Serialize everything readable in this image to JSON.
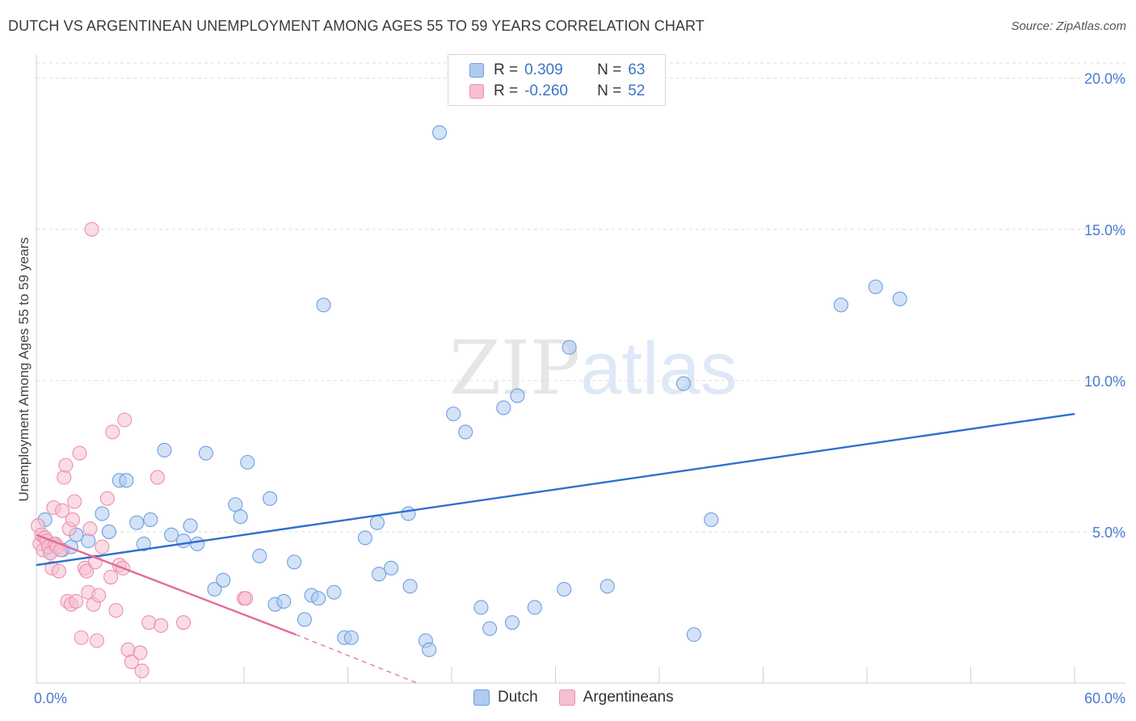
{
  "title": "DUTCH VS ARGENTINEAN UNEMPLOYMENT AMONG AGES 55 TO 59 YEARS CORRELATION CHART",
  "source": "Source: ZipAtlas.com",
  "watermark": {
    "zip": "ZIP",
    "atlas": "atlas"
  },
  "legend": {
    "rows": [
      {
        "r_label": "R =",
        "r_value": "0.309",
        "n_label": "N =",
        "n_value": "63"
      },
      {
        "r_label": "R =",
        "r_value": "-0.260",
        "n_label": "N =",
        "n_value": "52"
      }
    ]
  },
  "bottom_legend": [
    "Dutch",
    "Argentineans"
  ],
  "colors": {
    "dutch_fill": "#aecbf0",
    "dutch_stroke": "#6f9fe0",
    "dutch_line": "#2f6fd0",
    "arg_fill": "#f6bfd0",
    "arg_stroke": "#ec8fb0",
    "arg_line": "#e46b98",
    "grid": "#dddddd",
    "axis_text": "#4a7bd0"
  },
  "chart_data": {
    "type": "scatter",
    "title": "DUTCH VS ARGENTINEAN UNEMPLOYMENT AMONG AGES 55 TO 59 YEARS CORRELATION CHART",
    "xlabel": "",
    "ylabel": "Unemployment Among Ages 55 to 59 years",
    "xlim": [
      0,
      60
    ],
    "ylim": [
      0,
      20.5
    ],
    "x_ticks": [
      {
        "value": 0,
        "label": "0.0%"
      },
      {
        "value": 60,
        "label": "60.0%"
      }
    ],
    "y_ticks": [
      {
        "value": 5,
        "label": "5.0%"
      },
      {
        "value": 10,
        "label": "10.0%"
      },
      {
        "value": 15,
        "label": "15.0%"
      },
      {
        "value": 20,
        "label": "20.0%"
      }
    ],
    "grid": true,
    "legend_position": "top-center",
    "series": [
      {
        "name": "Dutch",
        "points": [
          [
            0.5,
            5.4
          ],
          [
            0.8,
            4.3
          ],
          [
            1.0,
            4.6
          ],
          [
            1.5,
            4.4
          ],
          [
            2.0,
            4.5
          ],
          [
            2.3,
            4.9
          ],
          [
            3.0,
            4.7
          ],
          [
            3.8,
            5.6
          ],
          [
            4.2,
            5.0
          ],
          [
            4.8,
            6.7
          ],
          [
            5.2,
            6.7
          ],
          [
            5.8,
            5.3
          ],
          [
            6.2,
            4.6
          ],
          [
            6.6,
            5.4
          ],
          [
            7.4,
            7.7
          ],
          [
            7.8,
            4.9
          ],
          [
            8.5,
            4.7
          ],
          [
            8.9,
            5.2
          ],
          [
            9.3,
            4.6
          ],
          [
            9.8,
            7.6
          ],
          [
            10.3,
            3.1
          ],
          [
            10.8,
            3.4
          ],
          [
            11.5,
            5.9
          ],
          [
            11.8,
            5.5
          ],
          [
            12.2,
            7.3
          ],
          [
            12.9,
            4.2
          ],
          [
            13.5,
            6.1
          ],
          [
            13.8,
            2.6
          ],
          [
            14.3,
            2.7
          ],
          [
            14.9,
            4.0
          ],
          [
            15.5,
            2.1
          ],
          [
            15.9,
            2.9
          ],
          [
            16.3,
            2.8
          ],
          [
            16.6,
            12.5
          ],
          [
            17.2,
            3.0
          ],
          [
            17.8,
            1.5
          ],
          [
            18.2,
            1.5
          ],
          [
            19.0,
            4.8
          ],
          [
            19.7,
            5.3
          ],
          [
            19.8,
            3.6
          ],
          [
            20.5,
            3.8
          ],
          [
            21.5,
            5.6
          ],
          [
            21.6,
            3.2
          ],
          [
            22.5,
            1.4
          ],
          [
            22.7,
            1.1
          ],
          [
            23.3,
            18.2
          ],
          [
            24.1,
            8.9
          ],
          [
            24.8,
            8.3
          ],
          [
            25.7,
            2.5
          ],
          [
            26.2,
            1.8
          ],
          [
            27.0,
            9.1
          ],
          [
            27.5,
            2.0
          ],
          [
            27.8,
            9.5
          ],
          [
            28.8,
            2.5
          ],
          [
            30.5,
            3.1
          ],
          [
            30.8,
            11.1
          ],
          [
            33.0,
            3.2
          ],
          [
            37.4,
            9.9
          ],
          [
            38.0,
            1.6
          ],
          [
            39.0,
            5.4
          ],
          [
            46.5,
            12.5
          ],
          [
            48.5,
            13.1
          ],
          [
            49.9,
            12.7
          ]
        ]
      },
      {
        "name": "Argentineans",
        "points": [
          [
            0.1,
            5.2
          ],
          [
            0.2,
            4.6
          ],
          [
            0.3,
            4.9
          ],
          [
            0.4,
            4.4
          ],
          [
            0.5,
            4.8
          ],
          [
            0.6,
            4.7
          ],
          [
            0.7,
            4.5
          ],
          [
            0.8,
            4.3
          ],
          [
            0.9,
            3.8
          ],
          [
            1.0,
            5.8
          ],
          [
            1.1,
            4.6
          ],
          [
            1.2,
            4.5
          ],
          [
            1.3,
            3.7
          ],
          [
            1.4,
            4.4
          ],
          [
            1.5,
            5.7
          ],
          [
            1.6,
            6.8
          ],
          [
            1.7,
            7.2
          ],
          [
            1.8,
            2.7
          ],
          [
            1.9,
            5.1
          ],
          [
            2.0,
            2.6
          ],
          [
            2.1,
            5.4
          ],
          [
            2.2,
            6.0
          ],
          [
            2.3,
            2.7
          ],
          [
            2.5,
            7.6
          ],
          [
            2.6,
            1.5
          ],
          [
            2.8,
            3.8
          ],
          [
            2.9,
            3.7
          ],
          [
            3.0,
            3.0
          ],
          [
            3.1,
            5.1
          ],
          [
            3.2,
            15.0
          ],
          [
            3.3,
            2.6
          ],
          [
            3.4,
            4.0
          ],
          [
            3.5,
            1.4
          ],
          [
            3.6,
            2.9
          ],
          [
            3.8,
            4.5
          ],
          [
            4.1,
            6.1
          ],
          [
            4.3,
            3.5
          ],
          [
            4.4,
            8.3
          ],
          [
            4.6,
            2.4
          ],
          [
            4.8,
            3.9
          ],
          [
            5.0,
            3.8
          ],
          [
            5.1,
            8.7
          ],
          [
            5.3,
            1.1
          ],
          [
            5.5,
            0.7
          ],
          [
            6.0,
            1.0
          ],
          [
            6.1,
            0.4
          ],
          [
            6.5,
            2.0
          ],
          [
            7.0,
            6.8
          ],
          [
            7.2,
            1.9
          ],
          [
            8.5,
            2.0
          ],
          [
            12.0,
            2.8
          ],
          [
            12.1,
            2.8
          ]
        ]
      }
    ],
    "trend_lines": [
      {
        "series": "Dutch",
        "x": [
          0,
          60
        ],
        "y": [
          3.9,
          8.9
        ],
        "style": "solid"
      },
      {
        "series": "Argentineans",
        "x": [
          0,
          15
        ],
        "y": [
          4.9,
          1.6
        ],
        "style": "solid"
      },
      {
        "series": "Argentineans",
        "x": [
          15,
          22
        ],
        "y": [
          1.6,
          0.0
        ],
        "style": "dashed"
      }
    ]
  }
}
